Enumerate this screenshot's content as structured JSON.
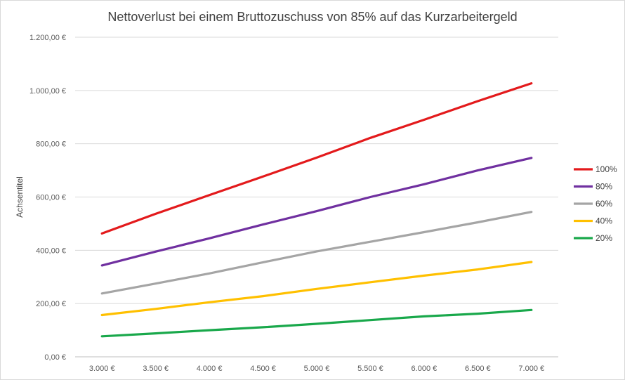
{
  "chart_data": {
    "type": "line",
    "title": "Nettoverlust bei einem Bruttozuschuss von 85% auf das Kurzarbeitergeld",
    "xlabel": "",
    "ylabel": "Achsentitel",
    "categories": [
      "3.000 €",
      "3.500 €",
      "4.000 €",
      "4.500 €",
      "5.000 €",
      "5.500 €",
      "6.000 €",
      "6.500 €",
      "7.000 €"
    ],
    "ylim": [
      0,
      1200
    ],
    "yticks": [
      0,
      200,
      400,
      600,
      800,
      1000,
      1200
    ],
    "ytick_labels": [
      "0,00 €",
      "200,00 €",
      "400,00 €",
      "600,00 €",
      "800,00 €",
      "1.000,00 €",
      "1.200,00 €"
    ],
    "grid": true,
    "legend_position": "right",
    "series": [
      {
        "name": "100%",
        "color": "#e31a1c",
        "values": [
          463,
          537,
          607,
          677,
          748,
          822,
          890,
          960,
          1027
        ]
      },
      {
        "name": "80%",
        "color": "#7030a0",
        "values": [
          343,
          395,
          445,
          497,
          547,
          600,
          648,
          700,
          747
        ]
      },
      {
        "name": "60%",
        "color": "#a5a5a5",
        "values": [
          238,
          275,
          313,
          355,
          396,
          432,
          468,
          505,
          544
        ]
      },
      {
        "name": "40%",
        "color": "#ffc000",
        "values": [
          157,
          180,
          205,
          228,
          255,
          280,
          305,
          328,
          356
        ]
      },
      {
        "name": "20%",
        "color": "#19a84b",
        "values": [
          77,
          88,
          100,
          111,
          124,
          138,
          152,
          162,
          176
        ]
      }
    ]
  }
}
